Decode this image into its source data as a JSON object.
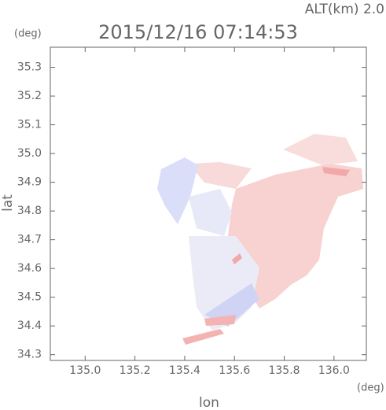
{
  "chart_data": {
    "type": "map",
    "title": "2015/12/16 07:14:53",
    "subtitle": "ALT(km) 2.0",
    "y_unit": "(deg)",
    "x_unit": "(deg)",
    "xlabel": "lon",
    "ylabel": "lat",
    "xlim": [
      134.86,
      136.13
    ],
    "ylim": [
      34.28,
      35.37
    ],
    "xticks": [
      {
        "value": 135.0,
        "label": "135.0"
      },
      135.2,
      135.4,
      135.6,
      135.8,
      {
        "value": 136.0,
        "label": "136.0"
      }
    ],
    "yticks": [
      34.3,
      34.4,
      34.5,
      34.6,
      34.7,
      34.8,
      34.9,
      {
        "value": 35.0,
        "label": "35.0"
      },
      35.1,
      35.2,
      35.3
    ]
  }
}
